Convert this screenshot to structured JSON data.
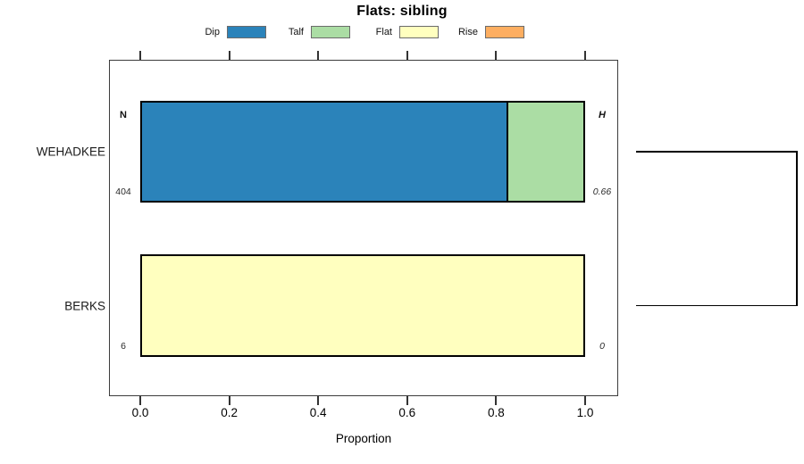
{
  "title": "Flats: sibling",
  "legend": {
    "items": [
      {
        "label": "Dip",
        "color": "#2B83BA"
      },
      {
        "label": "Talf",
        "color": "#ABDDA4"
      },
      {
        "label": "Flat",
        "color": "#FFFFBF"
      },
      {
        "label": "Rise",
        "color": "#FDAE61"
      }
    ]
  },
  "annotations": {
    "n_header": "N",
    "h_header": "H"
  },
  "chart_data": {
    "type": "bar",
    "orientation": "horizontal",
    "stacked": true,
    "title": "Flats: sibling",
    "xlabel": "Proportion",
    "xlim": [
      0,
      1
    ],
    "x_ticks": [
      0.0,
      0.2,
      0.4,
      0.6,
      0.8,
      1.0
    ],
    "x_tick_labels": [
      "0.0",
      "0.2",
      "0.4",
      "0.6",
      "0.8",
      "1.0"
    ],
    "categories": [
      "Dip",
      "Talf",
      "Flat",
      "Rise"
    ],
    "category_colors": {
      "Dip": "#2B83BA",
      "Talf": "#ABDDA4",
      "Flat": "#FFFFBF",
      "Rise": "#FDAE61"
    },
    "rows": [
      {
        "label": "WEHADKEE",
        "n": "404",
        "h": "0.66",
        "segments": [
          {
            "category": "Dip",
            "proportion": 0.83
          },
          {
            "category": "Talf",
            "proportion": 0.17
          }
        ]
      },
      {
        "label": "BERKS",
        "n": "6",
        "h": "0",
        "segments": [
          {
            "category": "Flat",
            "proportion": 1.0
          }
        ]
      }
    ],
    "dendrogram": {
      "leaves": [
        "WEHADKEE",
        "BERKS"
      ],
      "join_side": "right"
    }
  }
}
